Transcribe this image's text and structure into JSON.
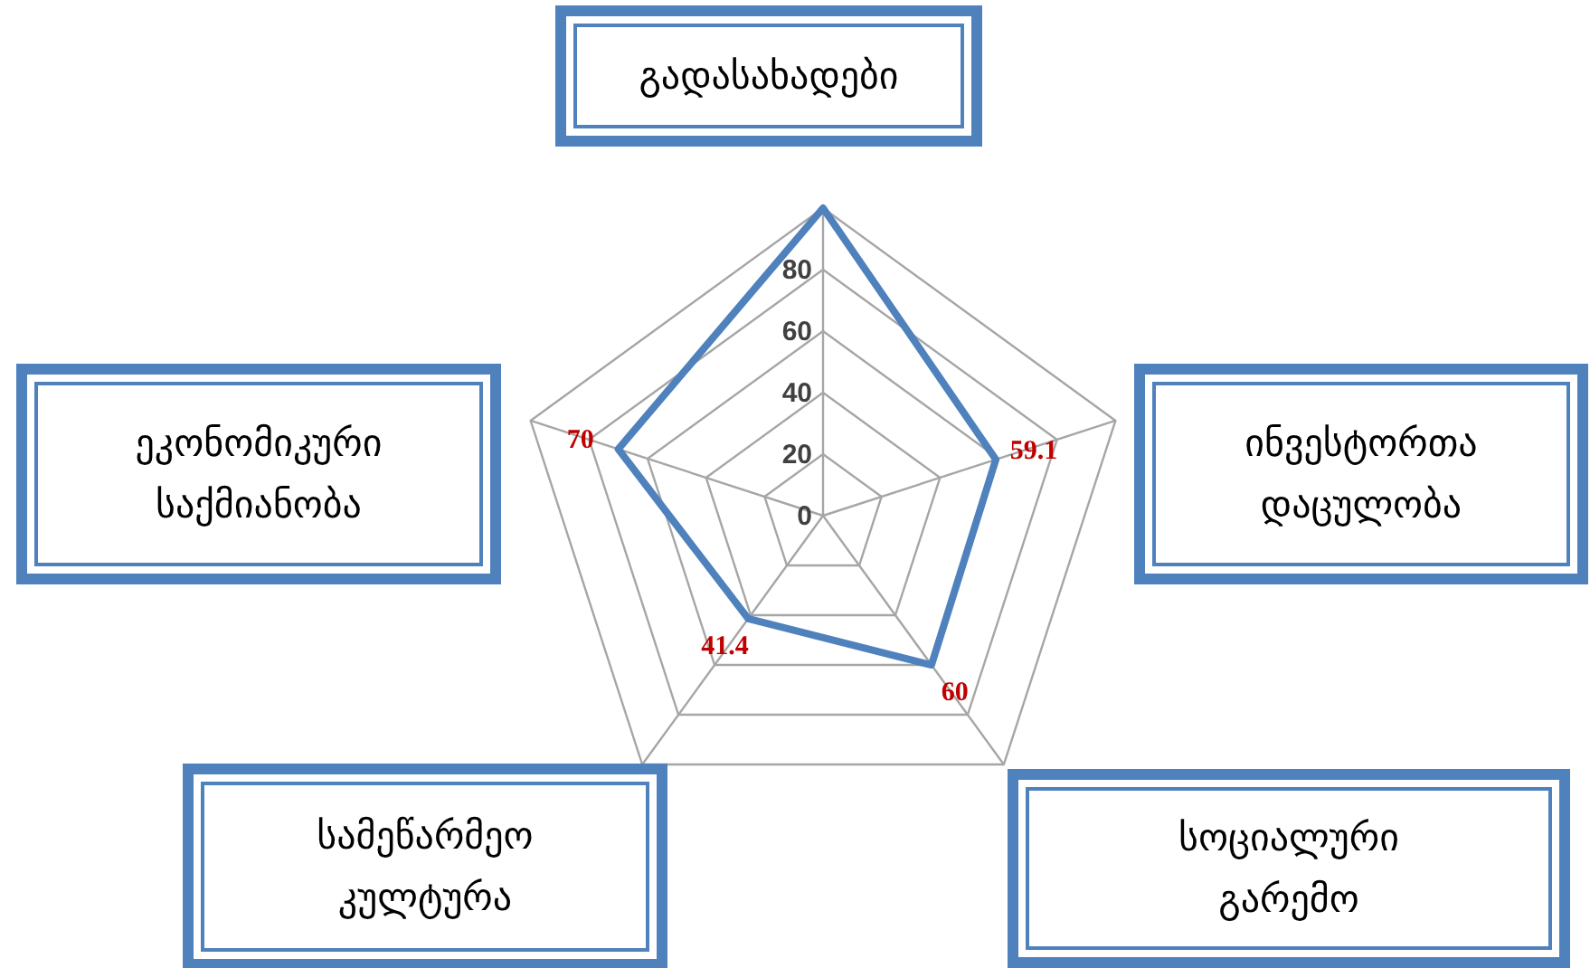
{
  "chart_data": {
    "type": "radar",
    "categories": [
      "გადასახადები",
      "ინვესტორთა დაცულობა",
      "სოციალური გარემო",
      "სამეწარმეო კულტურა",
      "ეკონომიკური საქმიანობა"
    ],
    "series": [
      {
        "color": "#4f81bd",
        "values": [
          100,
          59.1,
          60,
          41.4,
          70
        ],
        "value_labels": [
          null,
          "59.1",
          "60",
          "41.4",
          "70"
        ]
      }
    ],
    "ylim": [
      0,
      100
    ],
    "yticks": [
      0,
      20,
      40,
      60,
      80
    ],
    "grid": true,
    "marker": "none",
    "line_style": "solid"
  }
}
